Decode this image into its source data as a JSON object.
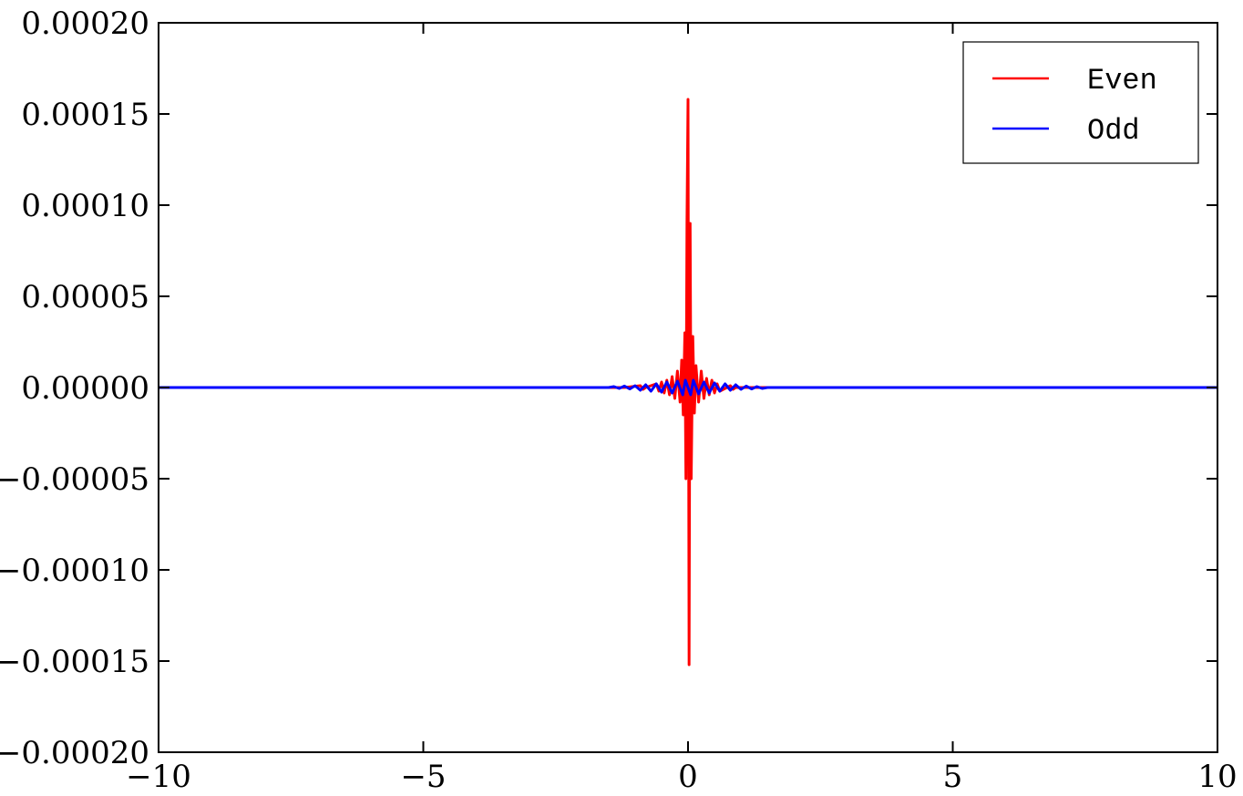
{
  "chart_data": {
    "type": "line",
    "title": "",
    "xlabel": "",
    "ylabel": "",
    "xlim": [
      -10,
      10
    ],
    "ylim": [
      -0.0002,
      0.0002
    ],
    "xticks": [
      -10,
      -5,
      0,
      5,
      10
    ],
    "xtick_labels": [
      "−10",
      "−5",
      "0",
      "5",
      "10"
    ],
    "yticks": [
      0.0002,
      0.00015,
      0.0001,
      5e-05,
      0,
      -5e-05,
      -0.0001,
      -0.00015,
      -0.0002
    ],
    "ytick_labels": [
      "0.00020",
      "0.00015",
      "0.00010",
      "0.00005",
      "0.00000",
      "−0.00005",
      "−0.00010",
      "−0.00015",
      "−0.00020"
    ],
    "grid": false,
    "legend": {
      "position": "top-right"
    },
    "series": [
      {
        "name": "Even",
        "color": "#ff0000",
        "x": [
          -10,
          -1.2,
          -0.9,
          -0.85,
          -0.8,
          -0.6,
          -0.55,
          -0.5,
          -0.45,
          -0.4,
          -0.35,
          -0.3,
          -0.25,
          -0.2,
          -0.15,
          -0.12,
          -0.09,
          -0.06,
          -0.04,
          -0.02,
          0,
          0.02,
          0.04,
          0.06,
          0.09,
          0.12,
          0.15,
          0.2,
          0.25,
          0.3,
          0.35,
          0.4,
          0.45,
          0.5,
          0.55,
          0.6,
          0.8,
          0.85,
          0.9,
          1.2,
          10
        ],
        "y": [
          0,
          0,
          1e-06,
          -1e-06,
          0,
          2e-06,
          -2e-06,
          3e-06,
          -3e-06,
          4e-06,
          -4e-06,
          6e-06,
          -6e-06,
          9e-06,
          -8e-06,
          1.5e-05,
          -1.5e-05,
          3e-05,
          -5e-05,
          9e-05,
          0.000158,
          -0.000152,
          9e-05,
          -5e-05,
          2.8e-05,
          -1.4e-05,
          1.2e-05,
          -8e-06,
          9e-06,
          -6e-06,
          5e-06,
          -4e-06,
          4e-06,
          -3e-06,
          2e-06,
          -2e-06,
          1e-06,
          -1e-06,
          0,
          0,
          0
        ]
      },
      {
        "name": "Odd",
        "color": "#0000ff",
        "x": [
          -10,
          -1.5,
          -1.4,
          -1.3,
          -1.2,
          -1.1,
          -1.0,
          -0.9,
          -0.8,
          -0.7,
          -0.6,
          -0.5,
          -0.4,
          -0.3,
          -0.2,
          -0.1,
          -0.05,
          0,
          0.05,
          0.1,
          0.2,
          0.3,
          0.4,
          0.5,
          0.6,
          0.7,
          0.8,
          0.9,
          1.0,
          1.1,
          1.2,
          1.3,
          1.4,
          1.5,
          10
        ],
        "y": [
          0,
          0,
          5e-07,
          -5e-07,
          8e-07,
          -8e-07,
          1e-06,
          -1.5e-06,
          1.5e-06,
          -2e-06,
          2e-06,
          -2.5e-06,
          3e-06,
          -3e-06,
          3.5e-06,
          -4e-06,
          4e-06,
          0,
          -4e-06,
          4e-06,
          -3.5e-06,
          3e-06,
          -3e-06,
          2.5e-06,
          -2e-06,
          2e-06,
          -1.5e-06,
          1.5e-06,
          -1e-06,
          8e-07,
          -8e-07,
          5e-07,
          -5e-07,
          0,
          0
        ]
      }
    ]
  }
}
